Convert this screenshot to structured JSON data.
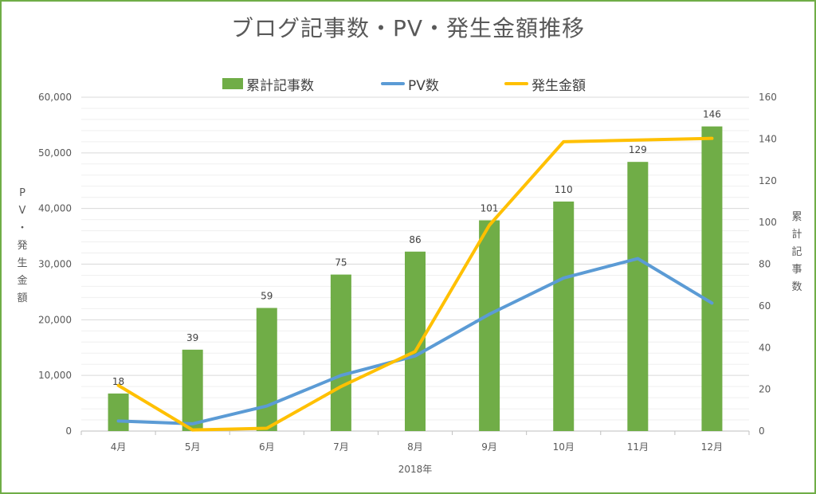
{
  "chart_data": {
    "type": "bar",
    "title": "ブログ記事数・PV・発生金額推移",
    "xlabel": "2018年",
    "ylabel_left": "PV・発生金額",
    "ylabel_right": "累計記事数",
    "categories": [
      "4月",
      "5月",
      "6月",
      "7月",
      "8月",
      "9月",
      "10月",
      "11月",
      "12月"
    ],
    "left_axis": {
      "min": 0,
      "max": 60000,
      "ticks": [
        "0",
        "10,000",
        "20,000",
        "30,000",
        "40,000",
        "50,000",
        "60,000"
      ]
    },
    "right_axis": {
      "min": 0,
      "max": 160,
      "ticks": [
        "0",
        "20",
        "40",
        "60",
        "80",
        "100",
        "120",
        "140",
        "160"
      ]
    },
    "series": [
      {
        "name": "累計記事数",
        "kind": "bar",
        "axis": "right",
        "color": "#70ad47",
        "values": [
          18,
          39,
          59,
          75,
          86,
          101,
          110,
          129,
          146
        ]
      },
      {
        "name": "PV数",
        "kind": "line",
        "axis": "left",
        "color": "#5b9bd5",
        "values": [
          1800,
          1300,
          4500,
          10000,
          13500,
          21000,
          27500,
          31000,
          23000
        ]
      },
      {
        "name": "発生金額",
        "kind": "line",
        "axis": "left",
        "color": "#ffc000",
        "values": [
          8200,
          200,
          500,
          8000,
          14300,
          37000,
          52000,
          52300,
          52600
        ]
      }
    ],
    "data_labels": [
      "18",
      "39",
      "59",
      "75",
      "86",
      "101",
      "110",
      "129",
      "146"
    ],
    "grid": true,
    "legend_position": "top"
  }
}
